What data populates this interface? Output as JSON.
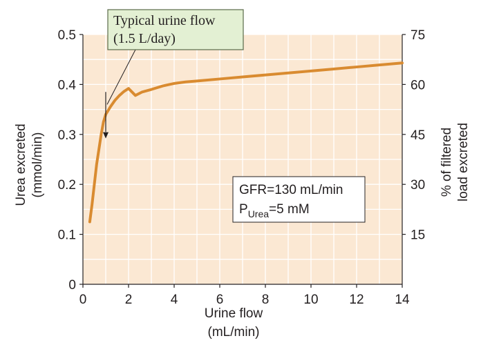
{
  "chart_data": {
    "type": "line",
    "title": "",
    "xlabel_lines": [
      "Urine flow",
      "(mL/min)"
    ],
    "ylabel_lines": [
      "Urea excreted",
      "(mmol/min)"
    ],
    "y2label_lines": [
      "% of filtered",
      "load excreted"
    ],
    "xlim": [
      0,
      14
    ],
    "ylim": [
      0,
      0.5
    ],
    "y2lim": [
      0,
      75
    ],
    "xticks": [
      "0",
      "2",
      "4",
      "6",
      "8",
      "10",
      "12",
      "14"
    ],
    "yticks": [
      "0",
      "0.1",
      "0.2",
      "0.3",
      "0.4",
      "0.5"
    ],
    "y2ticks": [
      "15",
      "30",
      "45",
      "60",
      "75"
    ],
    "grid": true,
    "series": [
      {
        "x": [
          0.3,
          0.4,
          0.5,
          0.6,
          0.7,
          0.8,
          0.9,
          1.0,
          1.2,
          1.4,
          1.6,
          1.8,
          2.0,
          2.3,
          2.6,
          3.0,
          3.5,
          4.0,
          4.5,
          5.0,
          6.0,
          7.0,
          8.0,
          9.0,
          10.0,
          11.0,
          12.0,
          13.0,
          14.0
        ],
        "y": [
          0.125,
          0.16,
          0.2,
          0.24,
          0.27,
          0.3,
          0.325,
          0.34,
          0.355,
          0.368,
          0.378,
          0.386,
          0.392,
          0.378,
          0.385,
          0.39,
          0.397,
          0.402,
          0.405,
          0.407,
          0.411,
          0.415,
          0.419,
          0.423,
          0.427,
          0.431,
          0.435,
          0.439,
          0.443
        ]
      }
    ],
    "callout": {
      "lines": [
        "Typical urine flow",
        "(1.5 L/day)"
      ]
    },
    "annotation": {
      "line1": "GFR=130 mL/min",
      "line2_prefix": "P",
      "line2_sub": "Urea",
      "line2_suffix": "=5 mM"
    },
    "colors": {
      "plot_background": "#fbe8d3",
      "grid": "#ffffff",
      "curve": "#d98b30",
      "callout_fill": "#e3f0d3",
      "callout_border": "#5a6a4a",
      "annotation_fill": "#ffffff",
      "axis": "#231f20"
    }
  }
}
